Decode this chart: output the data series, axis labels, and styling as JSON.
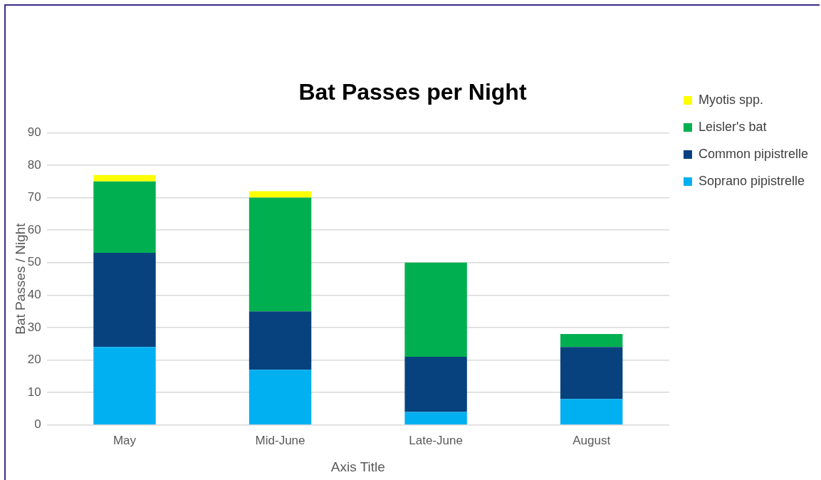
{
  "chart_data": {
    "type": "bar",
    "title": "Bat Passes per Night",
    "xlabel": "Axis Title",
    "ylabel": "Bat Passes / Night",
    "categories": [
      "May",
      "Mid-June",
      "Late-June",
      "August"
    ],
    "series": [
      {
        "name": "Soprano pipistrelle",
        "color": "#00b0f0",
        "values": [
          24,
          17,
          4,
          8
        ]
      },
      {
        "name": "Common pipistrelle",
        "color": "#07427e",
        "values": [
          29,
          18,
          17,
          16
        ]
      },
      {
        "name": "Leisler's bat",
        "color": "#00b050",
        "values": [
          22,
          35,
          29,
          4
        ]
      },
      {
        "name": "Myotis spp.",
        "color": "#ffff00",
        "values": [
          2,
          2,
          0,
          0
        ]
      }
    ],
    "stacked": true,
    "ylim": [
      0,
      90
    ],
    "yticks": [
      0,
      10,
      20,
      30,
      40,
      50,
      60,
      70,
      80,
      90
    ],
    "grid": "y",
    "legend": "right"
  }
}
